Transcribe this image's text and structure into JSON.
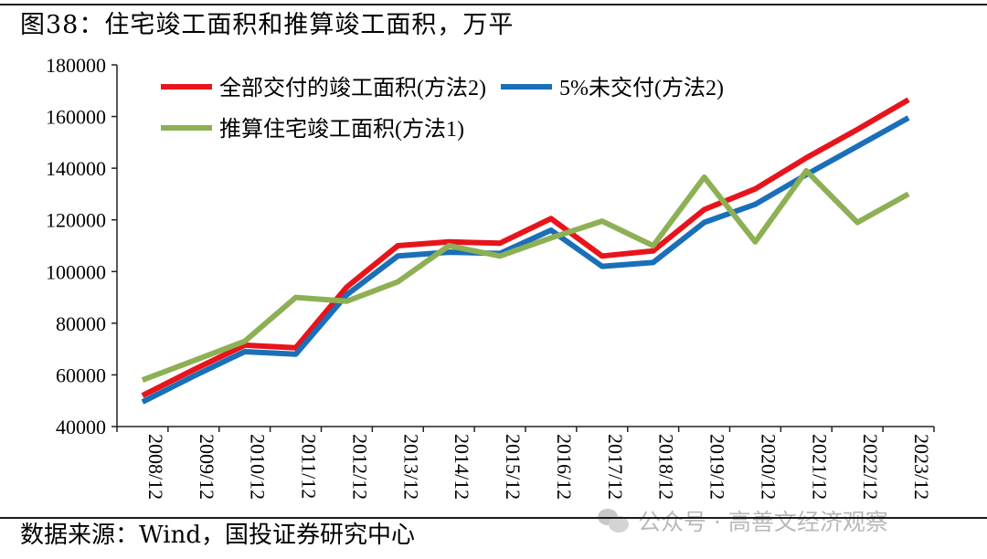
{
  "title": "图38：住宅竣工面积和推算竣工面积，万平",
  "source": "数据来源：Wind，国投证券研究中心",
  "watermark": "公众号 · 高善文经济观察",
  "chart_data": {
    "type": "line",
    "title": "",
    "xlabel": "",
    "ylabel": "",
    "ylim": [
      40000,
      180000
    ],
    "yticks": [
      40000,
      60000,
      80000,
      100000,
      120000,
      140000,
      160000,
      180000
    ],
    "grid": false,
    "legend_position": "top-left",
    "categories": [
      "2008/12",
      "2009/12",
      "2010/12",
      "2011/12",
      "2012/12",
      "2013/12",
      "2014/12",
      "2015/12",
      "2016/12",
      "2017/12",
      "2018/12",
      "2019/12",
      "2020/12",
      "2021/12",
      "2022/12",
      "2023/12"
    ],
    "series": [
      {
        "name": "全部交付的竣工面积(方法2)",
        "color": "#e8141b",
        "values": [
          52000,
          62000,
          71500,
          70500,
          94000,
          110000,
          111500,
          111000,
          120500,
          106000,
          108000,
          124000,
          132000,
          144000,
          155000,
          166500
        ]
      },
      {
        "name": "5%未交付(方法2)",
        "color": "#1a6fb8",
        "values": [
          49500,
          59500,
          69000,
          68000,
          91000,
          106000,
          107500,
          107000,
          116000,
          102000,
          103500,
          119000,
          126000,
          137500,
          148500,
          159500
        ]
      },
      {
        "name": "推算住宅竣工面积(方法1)",
        "color": "#8db054",
        "values": [
          58000,
          65500,
          73000,
          90000,
          88500,
          96000,
          110000,
          106000,
          113000,
          119500,
          110000,
          136500,
          111500,
          139000,
          119000,
          130000
        ]
      }
    ]
  }
}
